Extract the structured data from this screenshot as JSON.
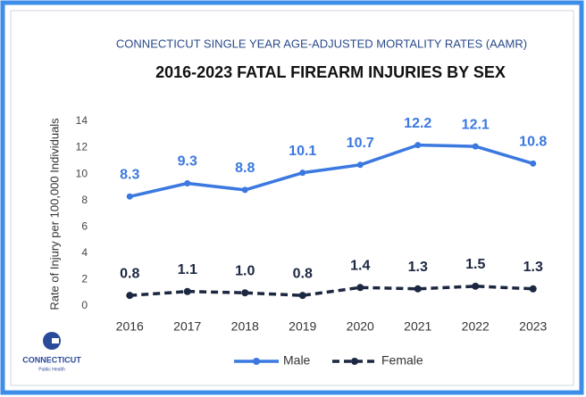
{
  "chart_data": {
    "type": "line",
    "subtitle": "CONNECTICUT SINGLE YEAR AGE-ADJUSTED MORTALITY RATES (AAMR)",
    "title": "2016-2023 FATAL FIREARM INJURIES BY SEX",
    "y_label": "Rate of Injury per 100,000 Individuals",
    "categories": [
      "2016",
      "2017",
      "2018",
      "2019",
      "2020",
      "2021",
      "2022",
      "2023"
    ],
    "series": [
      {
        "name": "Male",
        "color": "#3b78e0",
        "dash": false,
        "values": [
          8.3,
          9.3,
          8.8,
          10.1,
          10.7,
          12.2,
          12.1,
          10.8
        ]
      },
      {
        "name": "Female",
        "color": "#1c2741",
        "dash": true,
        "values": [
          0.8,
          1.1,
          1.0,
          0.8,
          1.4,
          1.3,
          1.5,
          1.3
        ],
        "value_labels": [
          "0.8",
          "1.1",
          "1.0",
          "0.8",
          "1.4",
          "1.3",
          "1.5",
          "1.3"
        ]
      }
    ],
    "ylim": [
      0,
      14
    ],
    "yticks": [
      0,
      2,
      4,
      6,
      8,
      10,
      12,
      14
    ],
    "grid": false,
    "legend": "bottom"
  },
  "logo": {
    "name": "CONNECTICUT",
    "subtitle": "Public Health"
  }
}
